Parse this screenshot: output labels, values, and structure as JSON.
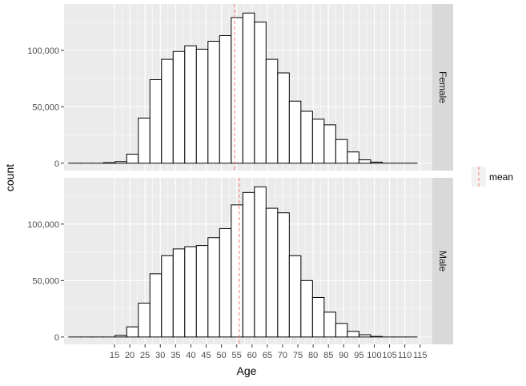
{
  "chart_data": {
    "type": "bar",
    "subtype": "faceted-histogram",
    "xlabel": "Age",
    "ylabel": "count",
    "x_ticks": [
      15,
      20,
      25,
      30,
      35,
      40,
      45,
      50,
      55,
      60,
      65,
      70,
      75,
      80,
      85,
      90,
      95,
      100,
      105,
      110,
      115
    ],
    "y_ticks": [
      0,
      50000,
      100000
    ],
    "y_tick_labels": [
      "0",
      "50,000",
      "100,000"
    ],
    "xlim": [
      -1.5,
      119
    ],
    "ylim": [
      -6500,
      141000
    ],
    "bin_width": 3.8,
    "bins_left": [
      0.0,
      3.8,
      7.6,
      11.4,
      15.2,
      19.0,
      22.8,
      26.6,
      30.4,
      34.2,
      38.0,
      41.8,
      45.6,
      49.4,
      53.2,
      57.0,
      60.8,
      64.6,
      68.4,
      72.2,
      76.0,
      79.8,
      83.6,
      87.4,
      91.2,
      95.0,
      98.8,
      102.6,
      106.4,
      110.2
    ],
    "grid": true,
    "legend": {
      "position": "right",
      "label": "mean",
      "color": "#F8766D",
      "linetype": "dashed"
    },
    "panels": [
      {
        "strip": "Female",
        "mean": 54.3,
        "counts": [
          0,
          0,
          0,
          500,
          1500,
          8000,
          40000,
          74000,
          92000,
          99000,
          104000,
          101000,
          108000,
          113000,
          129000,
          133000,
          125000,
          92000,
          80000,
          55000,
          46000,
          39000,
          34000,
          21000,
          10000,
          3000,
          1000,
          0,
          0,
          0
        ]
      },
      {
        "strip": "Male",
        "mean": 55.8,
        "counts": [
          0,
          0,
          0,
          0,
          1500,
          9000,
          30000,
          56000,
          72000,
          78000,
          80000,
          81000,
          88000,
          96000,
          117000,
          128000,
          133000,
          114000,
          110000,
          72000,
          50000,
          35000,
          22000,
          12000,
          5000,
          2000,
          500,
          0,
          0,
          0
        ]
      }
    ],
    "colors": {
      "panel_background": "#EBEBEB",
      "grid_major": "#FFFFFF",
      "strip_background": "#D9D9D9",
      "bar_fill": "#FFFFFF",
      "bar_outline": "#000000",
      "axis_text": "#4D4D4D"
    }
  }
}
